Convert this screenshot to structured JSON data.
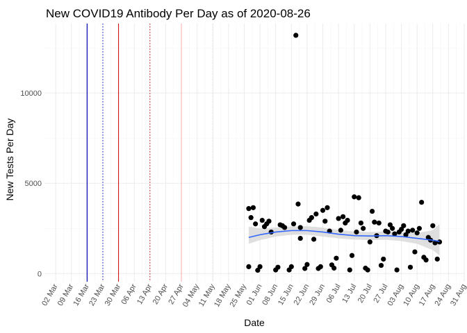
{
  "chart_data": {
    "type": "scatter",
    "title": "New COVID19 Antibody Per Day as of 2020-08-26",
    "xlabel": "Date",
    "ylabel": "New Tests Per Day",
    "xlim": [
      "2020-02-26",
      "2020-08-31"
    ],
    "ylim": [
      -450,
      13850
    ],
    "grid": true,
    "legend": "none",
    "y_ticks": [
      0,
      5000,
      10000
    ],
    "y_tick_labels": [
      "0",
      "5000",
      "10000"
    ],
    "x_ticks": [
      "2020-03-02",
      "2020-03-09",
      "2020-03-16",
      "2020-03-23",
      "2020-03-30",
      "2020-04-06",
      "2020-04-13",
      "2020-04-20",
      "2020-04-27",
      "2020-05-04",
      "2020-05-11",
      "2020-05-18",
      "2020-05-25",
      "2020-06-01",
      "2020-06-08",
      "2020-06-15",
      "2020-06-22",
      "2020-06-29",
      "2020-07-06",
      "2020-07-13",
      "2020-07-20",
      "2020-07-27",
      "2020-08-03",
      "2020-08-10",
      "2020-08-17",
      "2020-08-24",
      "2020-08-31"
    ],
    "x_tick_labels": [
      "02 Mar",
      "09 Mar",
      "16 Mar",
      "23 Mar",
      "30 Mar",
      "06 Apr",
      "13 Apr",
      "20 Apr",
      "27 Apr",
      "04 May",
      "11 May",
      "18 May",
      "25 May",
      "01 Jun",
      "08 Jun",
      "15 Jun",
      "22 Jun",
      "29 Jun",
      "06 Jul",
      "13 Jul",
      "20 Jul",
      "27 Jul",
      "03 Aug",
      "10 Aug",
      "17 Aug",
      "24 Aug",
      "31 Aug"
    ],
    "reference_lines": [
      {
        "x": "2020-03-16",
        "color": "#000000",
        "style": "solid"
      },
      {
        "x": "2020-03-16",
        "color": "#0000cc",
        "style": "solid"
      },
      {
        "x": "2020-03-23",
        "color": "#0000cc",
        "style": "dotted"
      },
      {
        "x": "2020-03-30",
        "color": "#cc0000",
        "style": "solid"
      },
      {
        "x": "2020-04-13",
        "color": "#cc0000",
        "style": "dotted"
      },
      {
        "x": "2020-04-27",
        "color": "#ffaaaa",
        "style": "solid"
      },
      {
        "x": "2020-05-11",
        "color": "#dddddd",
        "style": "dotted"
      }
    ],
    "series": [
      {
        "point_color": "#000000",
        "points": [
          [
            "2020-05-27",
            380
          ],
          [
            "2020-05-27",
            3600
          ],
          [
            "2020-05-28",
            3100
          ],
          [
            "2020-05-29",
            3650
          ],
          [
            "2020-05-30",
            2750
          ],
          [
            "2020-05-31",
            180
          ],
          [
            "2020-06-01",
            380
          ],
          [
            "2020-06-02",
            2950
          ],
          [
            "2020-06-03",
            2600
          ],
          [
            "2020-06-04",
            2750
          ],
          [
            "2020-06-05",
            2900
          ],
          [
            "2020-06-06",
            2300
          ],
          [
            "2020-06-08",
            200
          ],
          [
            "2020-06-09",
            350
          ],
          [
            "2020-06-10",
            2700
          ],
          [
            "2020-06-11",
            2650
          ],
          [
            "2020-06-12",
            2550
          ],
          [
            "2020-06-14",
            200
          ],
          [
            "2020-06-15",
            380
          ],
          [
            "2020-06-16",
            2750
          ],
          [
            "2020-06-17",
            13200
          ],
          [
            "2020-06-18",
            3850
          ],
          [
            "2020-06-19",
            2550
          ],
          [
            "2020-06-19",
            1950
          ],
          [
            "2020-06-21",
            280
          ],
          [
            "2020-06-22",
            500
          ],
          [
            "2020-06-23",
            2950
          ],
          [
            "2020-06-24",
            3100
          ],
          [
            "2020-06-25",
            1900
          ],
          [
            "2020-06-26",
            3300
          ],
          [
            "2020-06-27",
            280
          ],
          [
            "2020-06-28",
            380
          ],
          [
            "2020-06-29",
            3500
          ],
          [
            "2020-06-30",
            2900
          ],
          [
            "2020-07-01",
            3650
          ],
          [
            "2020-07-02",
            2350
          ],
          [
            "2020-07-03",
            480
          ],
          [
            "2020-07-04",
            300
          ],
          [
            "2020-07-05",
            850
          ],
          [
            "2020-07-06",
            3050
          ],
          [
            "2020-07-07",
            2400
          ],
          [
            "2020-07-08",
            3150
          ],
          [
            "2020-07-09",
            2800
          ],
          [
            "2020-07-10",
            2950
          ],
          [
            "2020-07-11",
            200
          ],
          [
            "2020-07-12",
            1000
          ],
          [
            "2020-07-13",
            4250
          ],
          [
            "2020-07-14",
            2300
          ],
          [
            "2020-07-15",
            4200
          ],
          [
            "2020-07-16",
            2800
          ],
          [
            "2020-07-17",
            2500
          ],
          [
            "2020-07-18",
            300
          ],
          [
            "2020-07-19",
            200
          ],
          [
            "2020-07-20",
            1750
          ],
          [
            "2020-07-21",
            3450
          ],
          [
            "2020-07-22",
            2850
          ],
          [
            "2020-07-23",
            2100
          ],
          [
            "2020-07-24",
            2800
          ],
          [
            "2020-07-25",
            450
          ],
          [
            "2020-07-26",
            800
          ],
          [
            "2020-07-27",
            2350
          ],
          [
            "2020-07-28",
            2300
          ],
          [
            "2020-07-29",
            2700
          ],
          [
            "2020-07-30",
            2500
          ],
          [
            "2020-07-31",
            2200
          ],
          [
            "2020-08-01",
            200
          ],
          [
            "2020-08-02",
            2300
          ],
          [
            "2020-08-03",
            2450
          ],
          [
            "2020-08-04",
            2650
          ],
          [
            "2020-08-05",
            2150
          ],
          [
            "2020-08-06",
            2350
          ],
          [
            "2020-08-07",
            350
          ],
          [
            "2020-08-08",
            2400
          ],
          [
            "2020-08-09",
            1200
          ],
          [
            "2020-08-10",
            2250
          ],
          [
            "2020-08-11",
            2500
          ],
          [
            "2020-08-12",
            3950
          ],
          [
            "2020-08-13",
            900
          ],
          [
            "2020-08-14",
            750
          ],
          [
            "2020-08-15",
            2000
          ],
          [
            "2020-08-16",
            1850
          ],
          [
            "2020-08-17",
            2650
          ],
          [
            "2020-08-18",
            1700
          ],
          [
            "2020-08-19",
            800
          ],
          [
            "2020-08-20",
            1750
          ]
        ]
      }
    ],
    "trend": {
      "color": "#3366ff",
      "band_color": "#d9d9d9",
      "points": [
        [
          "2020-05-27",
          2000,
          1650,
          2600
        ],
        [
          "2020-06-01",
          2150,
          1850,
          2500
        ],
        [
          "2020-06-08",
          2300,
          2050,
          2550
        ],
        [
          "2020-06-15",
          2380,
          2150,
          2600
        ],
        [
          "2020-06-22",
          2380,
          2150,
          2620
        ],
        [
          "2020-06-29",
          2300,
          2050,
          2550
        ],
        [
          "2020-07-06",
          2180,
          1950,
          2420
        ],
        [
          "2020-07-13",
          2100,
          1880,
          2330
        ],
        [
          "2020-07-20",
          2080,
          1850,
          2300
        ],
        [
          "2020-07-27",
          2100,
          1870,
          2330
        ],
        [
          "2020-08-03",
          2050,
          1800,
          2300
        ],
        [
          "2020-08-10",
          1950,
          1650,
          2250
        ],
        [
          "2020-08-17",
          1850,
          1300,
          2400
        ],
        [
          "2020-08-20",
          1780,
          1000,
          2750
        ]
      ]
    }
  }
}
